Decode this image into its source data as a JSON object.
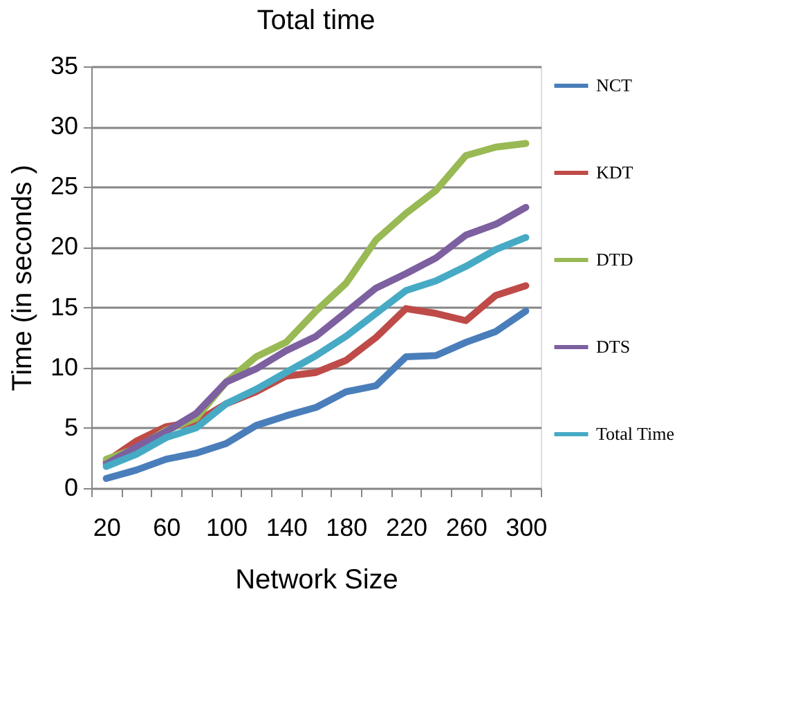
{
  "chart_data": {
    "type": "line",
    "title": "Total  time",
    "xlabel": "Network  Size",
    "ylabel": "Time (in seconds )",
    "categories": [
      "20",
      null,
      "60",
      null,
      "100",
      null,
      "140",
      null,
      "180",
      null,
      "220",
      null,
      "260",
      null,
      "300"
    ],
    "series": [
      {
        "name": "NCT",
        "color": "#4a7ebb",
        "values": [
          0.8,
          1.5,
          2.4,
          2.9,
          3.7,
          5.2,
          6.0,
          6.7,
          8.0,
          8.5,
          10.9,
          11.0,
          12.1,
          13.0,
          14.7
        ]
      },
      {
        "name": "KDT",
        "color": "#be4b48",
        "values": [
          2.2,
          3.9,
          5.1,
          5.5,
          7.0,
          8.0,
          9.3,
          9.6,
          10.6,
          12.5,
          14.9,
          14.5,
          13.9,
          16.0,
          16.8
        ]
      },
      {
        "name": "DTD",
        "color": "#98b954",
        "values": [
          2.4,
          3.3,
          4.8,
          5.8,
          8.8,
          10.9,
          12.1,
          14.7,
          17.0,
          20.6,
          22.8,
          24.7,
          27.6,
          28.3,
          28.6
        ]
      },
      {
        "name": "DTS",
        "color": "#7d60a0",
        "values": [
          2.0,
          3.4,
          4.7,
          6.2,
          8.8,
          9.9,
          11.4,
          12.6,
          14.6,
          16.6,
          17.8,
          19.1,
          21.0,
          21.9,
          23.3
        ]
      },
      {
        "name": "Total Time",
        "color": "#46aac5",
        "values": [
          1.8,
          2.8,
          4.2,
          5.0,
          7.0,
          8.2,
          9.6,
          11.0,
          12.6,
          14.5,
          16.4,
          17.2,
          18.4,
          19.8,
          20.8
        ]
      }
    ],
    "ylim": [
      0,
      35
    ],
    "yticks": [
      0,
      5,
      10,
      15,
      20,
      25,
      30,
      35
    ],
    "grid": "y",
    "legend": "right",
    "marker": "none",
    "line_style": "solid"
  }
}
